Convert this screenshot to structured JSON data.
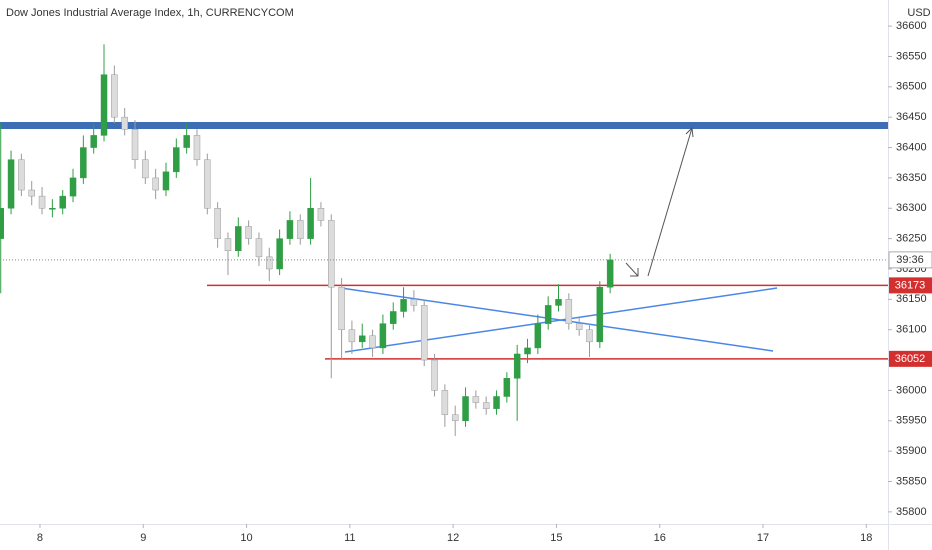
{
  "chart_data": {
    "type": "candlestick",
    "title": "Dow Jones Industrial Average Index, 1h, CURRENCYCOM",
    "currency": "USD",
    "countdown": "39:36",
    "up_color": "#2f9e44",
    "down_color": "#dcdcdc",
    "x": [
      7.62,
      7.72,
      7.82,
      7.92,
      8.02,
      8.12,
      8.22,
      8.32,
      8.42,
      8.52,
      8.62,
      8.72,
      8.82,
      8.92,
      9.02,
      9.12,
      9.22,
      9.32,
      9.42,
      9.52,
      9.62,
      9.72,
      9.82,
      9.92,
      10.02,
      10.12,
      10.22,
      10.32,
      10.42,
      10.52,
      10.62,
      10.72,
      10.82,
      10.92,
      11.02,
      11.12,
      11.22,
      11.32,
      11.42,
      11.52,
      11.62,
      11.72,
      11.82,
      11.92,
      12.02,
      12.12,
      12.22,
      12.32,
      12.42,
      12.52,
      12.62,
      12.72,
      12.82,
      12.92,
      13.02,
      13.12,
      13.22,
      13.32,
      13.42,
      13.52
    ],
    "open": [
      36250,
      36300,
      36380,
      36330,
      36320,
      36300,
      36300,
      36320,
      36350,
      36400,
      36420,
      36520,
      36450,
      36430,
      36380,
      36350,
      36330,
      36360,
      36400,
      36420,
      36380,
      36300,
      36250,
      36230,
      36270,
      36250,
      36220,
      36200,
      36250,
      36280,
      36250,
      36300,
      36280,
      36170,
      36100,
      36080,
      36090,
      36070,
      36110,
      36130,
      36150,
      36140,
      36050,
      36000,
      35960,
      35950,
      35990,
      35980,
      35970,
      35990,
      36020,
      36060,
      36070,
      36110,
      36140,
      36150,
      36110,
      36100,
      36080,
      36170
    ],
    "high": [
      36440,
      36395,
      36390,
      36345,
      36335,
      36315,
      36330,
      36365,
      36420,
      36440,
      36570,
      36535,
      36465,
      36445,
      36395,
      36365,
      36375,
      36415,
      36440,
      36430,
      36390,
      36310,
      36260,
      36285,
      36280,
      36260,
      36235,
      36265,
      36295,
      36290,
      36350,
      36310,
      36290,
      36185,
      36115,
      36110,
      36100,
      36125,
      36145,
      36170,
      36165,
      36150,
      36060,
      36010,
      35975,
      36005,
      36000,
      35990,
      36000,
      36030,
      36075,
      36085,
      36125,
      36155,
      36175,
      36160,
      36120,
      36110,
      36180,
      36225
    ],
    "low": [
      36160,
      36290,
      36320,
      36305,
      36290,
      36285,
      36290,
      36310,
      36340,
      36390,
      36410,
      36440,
      36420,
      36365,
      36340,
      36315,
      36320,
      36350,
      36390,
      36370,
      36290,
      36235,
      36190,
      36220,
      36240,
      36205,
      36180,
      36190,
      36240,
      36240,
      36240,
      36270,
      36020,
      36050,
      36060,
      36070,
      36055,
      36060,
      36100,
      36120,
      36130,
      36040,
      35990,
      35940,
      35925,
      35940,
      35970,
      35960,
      35960,
      35980,
      35950,
      36045,
      36060,
      36100,
      36130,
      36100,
      36090,
      36055,
      36070,
      36160
    ],
    "close": [
      36300,
      36380,
      36330,
      36320,
      36300,
      36300,
      36320,
      36350,
      36400,
      36420,
      36520,
      36450,
      36430,
      36380,
      36350,
      36330,
      36360,
      36400,
      36420,
      36380,
      36300,
      36250,
      36230,
      36270,
      36250,
      36220,
      36200,
      36250,
      36280,
      36250,
      36300,
      36280,
      36170,
      36100,
      36080,
      36090,
      36070,
      36110,
      36130,
      36150,
      36140,
      36050,
      36000,
      35960,
      35950,
      35990,
      35980,
      35970,
      35990,
      36020,
      36060,
      36070,
      36110,
      36140,
      36150,
      36110,
      36100,
      36080,
      36170,
      36215
    ],
    "xlim": [
      7.613,
      16.21
    ],
    "xticks": [
      8,
      9,
      10,
      11,
      12,
      {
        "value": 13,
        "label": "15"
      },
      {
        "value": 14,
        "label": "16"
      },
      {
        "value": 15,
        "label": "17"
      },
      {
        "value": 16,
        "label": "18"
      }
    ],
    "ylim": [
      35780,
      36643
    ],
    "yticks": [
      35800,
      35850,
      35900,
      35950,
      36000,
      36050,
      36100,
      36150,
      36200,
      36250,
      36300,
      36350,
      36400,
      36450,
      36500,
      36550,
      36600
    ],
    "levels": [
      {
        "value": 36173,
        "color": "#d32f2f"
      },
      {
        "value": 36052,
        "color": "#d32f2f"
      }
    ]
  }
}
